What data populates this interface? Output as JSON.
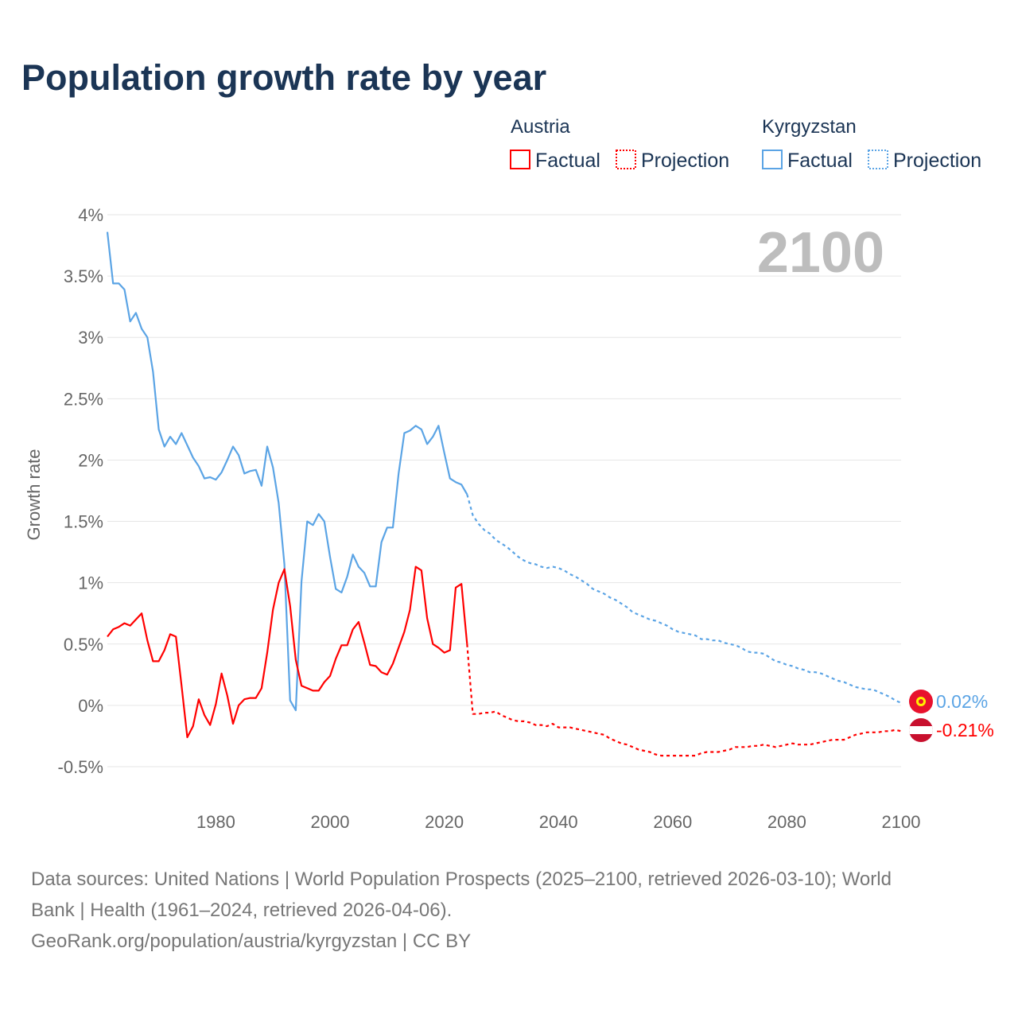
{
  "title": "Population growth rate by year",
  "legend": {
    "groups": [
      {
        "name": "Austria",
        "color": "#ff0000",
        "factual": "Factual",
        "projection": "Projection"
      },
      {
        "name": "Kyrgyzstan",
        "color": "#5ba4e5",
        "factual": "Factual",
        "projection": "Projection"
      }
    ]
  },
  "year_badge": "2100",
  "end_labels": {
    "kyrgyzstan": "0.02%",
    "austria": "-0.21%"
  },
  "flag_icons": {
    "kyrgyzstan": "kyrgyzstan-flag-icon",
    "austria": "austria-flag-icon"
  },
  "source_lines": [
    "Data sources: United Nations | World Population Prospects (2025–2100, retrieved 2026-03-10); World",
    "Bank | Health (1961–2024, retrieved 2026-04-06).",
    "GeoRank.org/population/austria/kyrgyzstan | CC BY"
  ],
  "chart_data": {
    "type": "line",
    "title": "Population growth rate by year",
    "ylabel": "Growth rate",
    "xlabel": "",
    "xlim": [
      1961,
      2100
    ],
    "ylim": [
      -0.5,
      4
    ],
    "yticks": [
      -0.5,
      0,
      0.5,
      1,
      1.5,
      2,
      2.5,
      3,
      3.5,
      4
    ],
    "ytick_labels": [
      "-0.5%",
      "0%",
      "0.5%",
      "1%",
      "1.5%",
      "2%",
      "2.5%",
      "3%",
      "3.5%",
      "4%"
    ],
    "xticks": [
      1980,
      2000,
      2020,
      2040,
      2060,
      2080,
      2100
    ],
    "xtick_labels": [
      "1980",
      "2000",
      "2020",
      "2040",
      "2060",
      "2080",
      "2100"
    ],
    "grid": true,
    "legend_position": "top-right",
    "series": [
      {
        "name": "Kyrgyzstan Factual",
        "color": "#5ba4e5",
        "style": "solid",
        "x_start": 1961,
        "values": [
          3.86,
          3.44,
          3.44,
          3.39,
          3.13,
          3.2,
          3.07,
          3.0,
          2.72,
          2.25,
          2.11,
          2.19,
          2.13,
          2.22,
          2.12,
          2.02,
          1.95,
          1.85,
          1.86,
          1.84,
          1.9,
          2.0,
          2.11,
          2.04,
          1.89,
          1.91,
          1.92,
          1.79,
          2.11,
          1.94,
          1.65,
          1.15,
          0.04,
          -0.04,
          1.01,
          1.5,
          1.47,
          1.56,
          1.5,
          1.21,
          0.95,
          0.92,
          1.05,
          1.23,
          1.13,
          1.08,
          0.97,
          0.97,
          1.33,
          1.45,
          1.45,
          1.89,
          2.22,
          2.24,
          2.28,
          2.25,
          2.13,
          2.19,
          2.28,
          2.06,
          1.85,
          1.82,
          1.8,
          1.72
        ]
      },
      {
        "name": "Kyrgyzstan Projection",
        "color": "#5ba4e5",
        "style": "dotted",
        "x_start": 2024,
        "values": [
          1.72,
          1.55,
          1.48,
          1.43,
          1.4,
          1.35,
          1.32,
          1.29,
          1.25,
          1.21,
          1.18,
          1.16,
          1.15,
          1.13,
          1.12,
          1.13,
          1.12,
          1.1,
          1.07,
          1.05,
          1.02,
          0.99,
          0.95,
          0.93,
          0.91,
          0.88,
          0.86,
          0.83,
          0.8,
          0.76,
          0.74,
          0.72,
          0.7,
          0.69,
          0.67,
          0.65,
          0.62,
          0.6,
          0.59,
          0.58,
          0.57,
          0.54,
          0.54,
          0.53,
          0.53,
          0.51,
          0.5,
          0.49,
          0.47,
          0.44,
          0.43,
          0.43,
          0.42,
          0.39,
          0.36,
          0.35,
          0.33,
          0.32,
          0.3,
          0.29,
          0.27,
          0.27,
          0.26,
          0.24,
          0.22,
          0.2,
          0.19,
          0.17,
          0.15,
          0.14,
          0.13,
          0.13,
          0.11,
          0.09,
          0.07,
          0.04,
          0.02
        ]
      },
      {
        "name": "Austria Factual",
        "color": "#ff0000",
        "style": "solid",
        "x_start": 1961,
        "values": [
          0.56,
          0.62,
          0.64,
          0.67,
          0.65,
          0.7,
          0.75,
          0.53,
          0.36,
          0.36,
          0.45,
          0.58,
          0.56,
          0.16,
          -0.26,
          -0.17,
          0.05,
          -0.08,
          -0.16,
          0.01,
          0.26,
          0.08,
          -0.15,
          0.0,
          0.05,
          0.06,
          0.06,
          0.14,
          0.43,
          0.78,
          1.0,
          1.11,
          0.81,
          0.37,
          0.16,
          0.14,
          0.12,
          0.12,
          0.19,
          0.24,
          0.38,
          0.49,
          0.49,
          0.62,
          0.68,
          0.51,
          0.33,
          0.32,
          0.27,
          0.25,
          0.34,
          0.47,
          0.6,
          0.78,
          1.13,
          1.1,
          0.71,
          0.5,
          0.47,
          0.43,
          0.45,
          0.96,
          0.99,
          0.5
        ]
      },
      {
        "name": "Austria Projection",
        "color": "#ff0000",
        "style": "dotted",
        "x_start": 2024,
        "values": [
          0.5,
          -0.07,
          -0.07,
          -0.06,
          -0.06,
          -0.05,
          -0.08,
          -0.1,
          -0.12,
          -0.13,
          -0.13,
          -0.14,
          -0.16,
          -0.16,
          -0.17,
          -0.15,
          -0.18,
          -0.18,
          -0.18,
          -0.19,
          -0.2,
          -0.21,
          -0.22,
          -0.23,
          -0.24,
          -0.27,
          -0.29,
          -0.31,
          -0.32,
          -0.34,
          -0.36,
          -0.37,
          -0.38,
          -0.4,
          -0.41,
          -0.41,
          -0.41,
          -0.41,
          -0.41,
          -0.41,
          -0.41,
          -0.39,
          -0.38,
          -0.38,
          -0.38,
          -0.37,
          -0.36,
          -0.34,
          -0.34,
          -0.34,
          -0.33,
          -0.33,
          -0.32,
          -0.33,
          -0.34,
          -0.33,
          -0.32,
          -0.31,
          -0.32,
          -0.32,
          -0.32,
          -0.31,
          -0.3,
          -0.29,
          -0.28,
          -0.28,
          -0.28,
          -0.26,
          -0.24,
          -0.23,
          -0.22,
          -0.22,
          -0.22,
          -0.21,
          -0.21,
          -0.2,
          -0.21
        ]
      }
    ]
  }
}
